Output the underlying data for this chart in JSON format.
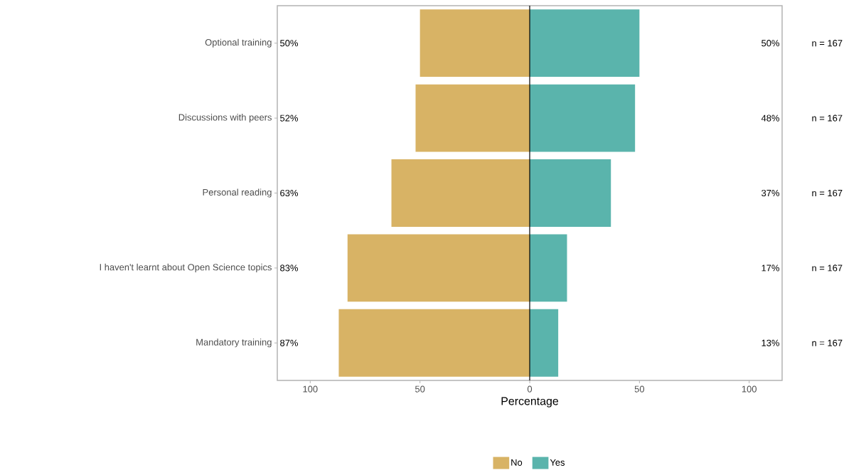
{
  "chart_data": {
    "type": "bar",
    "orientation": "horizontal",
    "xlabel": "Percentage",
    "categories": [
      "Optional training",
      "Discussions with peers",
      "Personal reading",
      "I haven't learnt about Open Science topics",
      "Mandatory training"
    ],
    "series": [
      {
        "name": "No",
        "color": "#d8b365",
        "values": [
          50,
          52,
          63,
          83,
          87
        ],
        "base": [
          -50,
          -52,
          -63,
          -83,
          -87
        ],
        "value_labels": [
          "50%",
          "52%",
          "63%",
          "83%",
          "87%"
        ]
      },
      {
        "name": "Yes",
        "color": "#5ab4ac",
        "values": [
          50,
          48,
          37,
          17,
          13
        ],
        "base": [
          0,
          0,
          0,
          0,
          0
        ],
        "value_labels": [
          "50%",
          "48%",
          "37%",
          "17%",
          "13%"
        ]
      }
    ],
    "xlim": [
      -115,
      115
    ],
    "xticks": [
      {
        "value": -100,
        "label": "100"
      },
      {
        "value": -50,
        "label": "50"
      },
      0,
      50,
      {
        "value": 100,
        "label": "100"
      }
    ],
    "ref_lines": [
      {
        "axis": "x",
        "value": 0,
        "color": "#000000"
      }
    ],
    "annotations": [
      "n = 167",
      "n = 167",
      "n = 167",
      "n = 167",
      "n = 167"
    ],
    "legend": "bottom"
  }
}
